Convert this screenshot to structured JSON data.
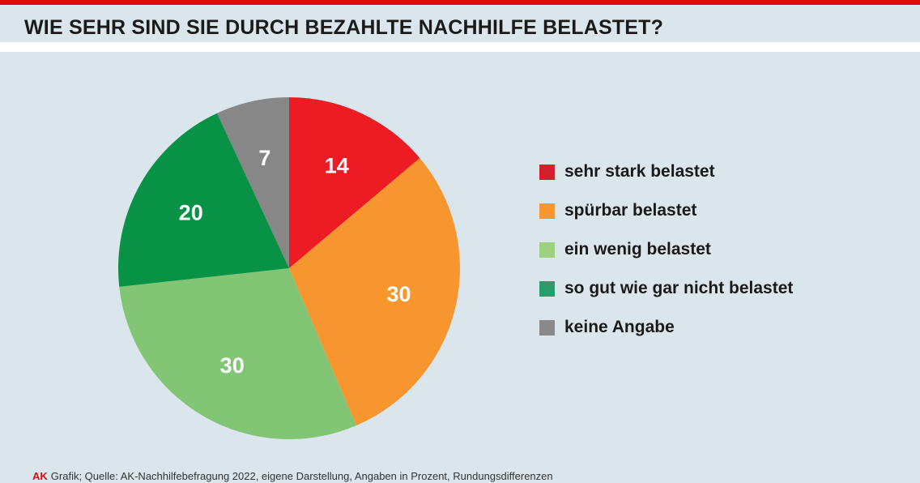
{
  "chart_data": {
    "type": "pie",
    "title": "WIE SEHR SIND SIE DURCH BEZAHLTE NACHHILFE BELASTET?",
    "legend_position": "right",
    "slices": [
      {
        "label": "sehr stark belastet",
        "value": 14,
        "display": "14",
        "color": "#ed1c24"
      },
      {
        "label": "spürbar belastet",
        "value": 30,
        "display": "30",
        "color": "#f7962f"
      },
      {
        "label": "ein wenig belastet",
        "value": 30,
        "display": "30",
        "color": "#82c575"
      },
      {
        "label": "so gut wie gar nicht belastet",
        "value": 20,
        "display": "20",
        "color": "#079245"
      },
      {
        "label": "keine Angabe",
        "value": 7,
        "display": "7",
        "color": "#878787"
      }
    ]
  },
  "legend": {
    "items": [
      {
        "label": "sehr stark belastet",
        "color": "#d21f2b"
      },
      {
        "label": "spürbar belastet",
        "color": "#f7962f"
      },
      {
        "label": "ein wenig belastet",
        "color": "#9dd17f"
      },
      {
        "label": "so gut wie gar nicht belastet",
        "color": "#2a9b6a"
      },
      {
        "label": "keine Angabe",
        "color": "#8a8a8a"
      }
    ]
  },
  "footer": {
    "brand": "AK",
    "source": "Grafik; Quelle: AK-Nachhilfebefragung 2022, eigene Darstellung, Angaben in Prozent, Rundungsdifferenzen"
  },
  "colors": {
    "accent": "#e30613",
    "panel": "#dbe6ec"
  }
}
